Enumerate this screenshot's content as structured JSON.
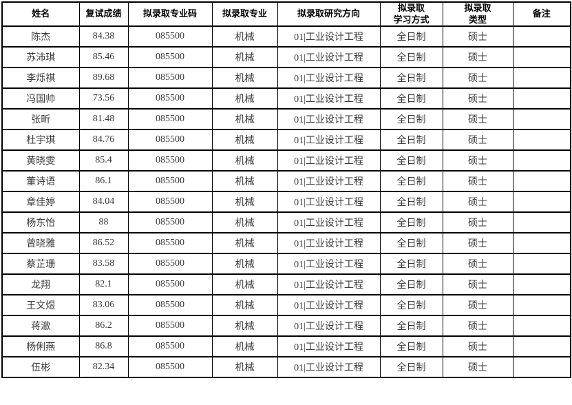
{
  "table": {
    "border_color": "#000000",
    "header_text_color": "#000000",
    "data_text_color": "#3a3a3a",
    "columns": [
      {
        "key": "name",
        "label": "姓名"
      },
      {
        "key": "score",
        "label": "复试成绩"
      },
      {
        "key": "major-code",
        "label": "拟录取专业码"
      },
      {
        "key": "major",
        "label": "拟录取专业"
      },
      {
        "key": "direction",
        "label": "拟录取研究方向"
      },
      {
        "key": "study-mode",
        "label": "拟录取\n学习方式"
      },
      {
        "key": "admit-type",
        "label": "拟录取\n类型"
      },
      {
        "key": "remark",
        "label": "备注"
      }
    ],
    "rows": [
      [
        "陈杰",
        "84.38",
        "085500",
        "机械",
        "01|工业设计工程",
        "全日制",
        "硕士",
        ""
      ],
      [
        "苏沛琪",
        "85.46",
        "085500",
        "机械",
        "01|工业设计工程",
        "全日制",
        "硕士",
        ""
      ],
      [
        "李烁祺",
        "89.68",
        "085500",
        "机械",
        "01|工业设计工程",
        "全日制",
        "硕士",
        ""
      ],
      [
        "冯国帅",
        "73.56",
        "085500",
        "机械",
        "01|工业设计工程",
        "全日制",
        "硕士",
        ""
      ],
      [
        "张昕",
        "81.48",
        "085500",
        "机械",
        "01|工业设计工程",
        "全日制",
        "硕士",
        ""
      ],
      [
        "杜宇琪",
        "84.76",
        "085500",
        "机械",
        "01|工业设计工程",
        "全日制",
        "硕士",
        ""
      ],
      [
        "黄晓雯",
        "85.4",
        "085500",
        "机械",
        "01|工业设计工程",
        "全日制",
        "硕士",
        ""
      ],
      [
        "董诗语",
        "86.1",
        "085500",
        "机械",
        "01|工业设计工程",
        "全日制",
        "硕士",
        ""
      ],
      [
        "章佳婷",
        "84.04",
        "085500",
        "机械",
        "01|工业设计工程",
        "全日制",
        "硕士",
        ""
      ],
      [
        "杨东怡",
        "88",
        "085500",
        "机械",
        "01|工业设计工程",
        "全日制",
        "硕士",
        ""
      ],
      [
        "曾晓雅",
        "86.52",
        "085500",
        "机械",
        "01|工业设计工程",
        "全日制",
        "硕士",
        ""
      ],
      [
        "蔡芷珊",
        "83.58",
        "085500",
        "机械",
        "01|工业设计工程",
        "全日制",
        "硕士",
        ""
      ],
      [
        "龙翔",
        "82.1",
        "085500",
        "机械",
        "01|工业设计工程",
        "全日制",
        "硕士",
        ""
      ],
      [
        "王文煜",
        "83.06",
        "085500",
        "机械",
        "01|工业设计工程",
        "全日制",
        "硕士",
        ""
      ],
      [
        "蒋澈",
        "86.2",
        "085500",
        "机械",
        "01|工业设计工程",
        "全日制",
        "硕士",
        ""
      ],
      [
        "杨俐燕",
        "86.8",
        "085500",
        "机械",
        "01|工业设计工程",
        "全日制",
        "硕士",
        ""
      ],
      [
        "伍彬",
        "82.34",
        "085500",
        "机械",
        "01|工业设计工程",
        "全日制",
        "硕士",
        ""
      ]
    ]
  }
}
